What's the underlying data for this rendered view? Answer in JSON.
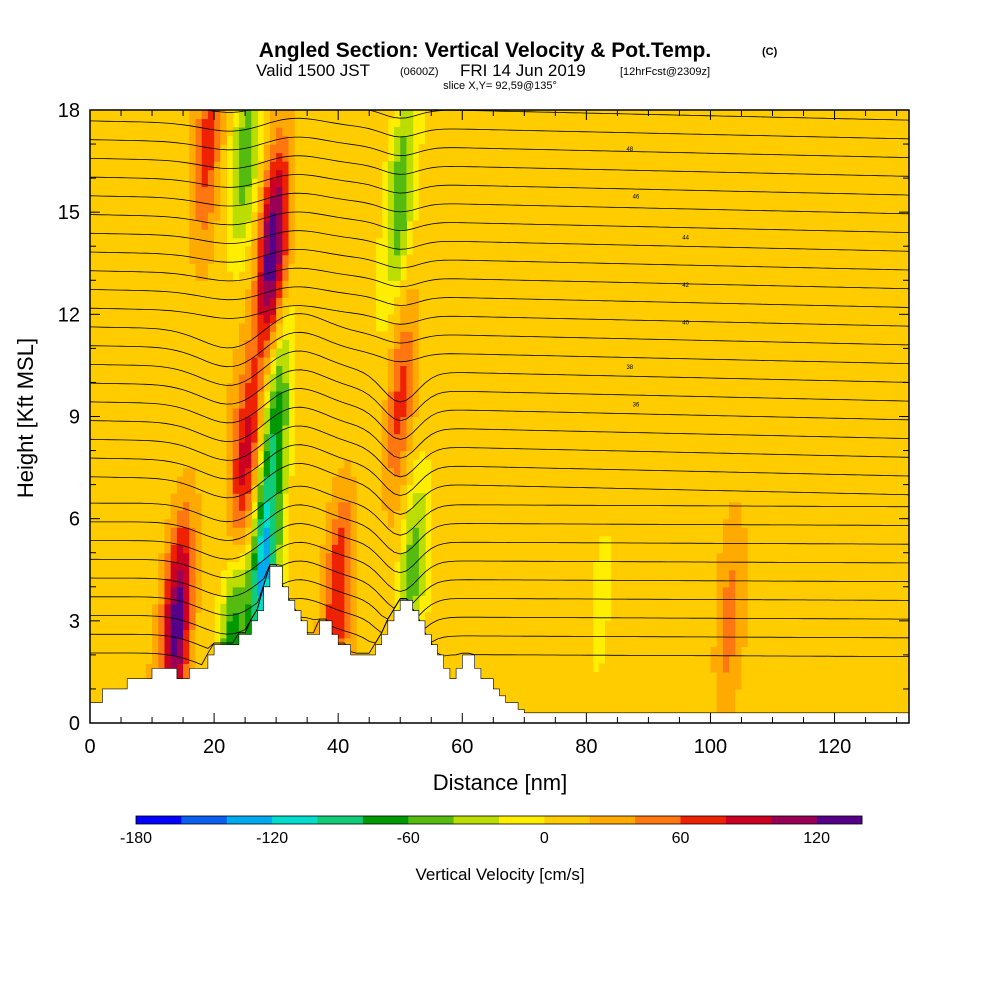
{
  "chart_data": {
    "type": "heatmap",
    "title": "Angled Section: Vertical Velocity & Pot.Temp.",
    "title_suffix": "(C)",
    "subtitle_parts": [
      "Valid 1500 JST",
      "(0600Z)",
      "FRI 14 Jun 2019",
      "[12hrFcst@2309z]"
    ],
    "slice_text": "slice X,Y= 92,59@135°",
    "xlabel": "Distance [nm]",
    "ylabel": "Height [Kft MSL]",
    "xlim": [
      0,
      132
    ],
    "ylim": [
      0,
      18
    ],
    "xticks": [
      "0",
      "20",
      "40",
      "60",
      "80",
      "100",
      "120"
    ],
    "xtick_values": [
      0,
      20,
      40,
      60,
      80,
      100,
      120
    ],
    "yticks": [
      "0",
      "3",
      "6",
      "9",
      "12",
      "15",
      "18"
    ],
    "ytick_values": [
      0,
      3,
      6,
      9,
      12,
      15,
      18
    ],
    "colorbar": {
      "title": "Vertical Velocity [cm/s]",
      "min": -180,
      "max": 140,
      "step": 20,
      "tick_labels": [
        "-180",
        "-120",
        "-60",
        "0",
        "60",
        "120"
      ],
      "tick_values": [
        -180,
        -120,
        -60,
        0,
        60,
        120
      ],
      "colors": [
        "#0000ff",
        "#0a5ef0",
        "#00aaee",
        "#00ddcc",
        "#11cc77",
        "#009900",
        "#55bb11",
        "#bbdd00",
        "#ffee00",
        "#ffcc00",
        "#ffaa00",
        "#ff7711",
        "#ee2200",
        "#cc0022",
        "#990055",
        "#550088"
      ]
    },
    "terrain_profile": {
      "x": [
        0,
        1,
        2,
        5,
        6,
        9,
        10,
        13,
        14,
        15,
        16,
        18,
        19,
        20,
        23,
        24,
        25,
        26,
        27,
        28,
        29,
        30,
        31,
        32,
        33,
        34,
        35,
        36,
        37,
        38,
        39,
        40,
        41,
        42,
        43,
        44,
        45,
        46,
        47,
        48,
        49,
        50,
        51,
        52,
        53,
        54,
        55,
        56,
        57,
        58,
        59,
        60,
        61,
        62,
        63,
        64,
        65,
        66,
        67,
        68,
        69,
        70,
        71,
        72,
        132
      ],
      "height_kft": [
        0.6,
        0.6,
        1.0,
        1.0,
        1.3,
        1.3,
        1.6,
        1.6,
        1.3,
        1.3,
        1.6,
        1.6,
        2.0,
        2.3,
        2.3,
        2.6,
        2.6,
        3.0,
        3.3,
        4.0,
        4.6,
        4.6,
        4.0,
        3.6,
        3.3,
        3.0,
        2.6,
        2.6,
        3.0,
        3.0,
        2.6,
        2.3,
        2.3,
        2.0,
        2.0,
        2.0,
        2.0,
        2.3,
        2.6,
        3.0,
        3.3,
        3.6,
        3.6,
        3.3,
        3.0,
        2.6,
        2.3,
        2.0,
        1.6,
        1.3,
        1.6,
        2.0,
        2.0,
        1.6,
        1.3,
        1.3,
        1.0,
        0.8,
        0.6,
        0.6,
        0.4,
        0.3,
        0.3,
        0.3,
        0.3
      ]
    },
    "updraft_cores": [
      {
        "x": 14,
        "z": 3.0,
        "w": 120
      },
      {
        "x": 25,
        "z": 7.5,
        "w": 80
      },
      {
        "x": 29.5,
        "z": 14.0,
        "w": 130
      },
      {
        "x": 40,
        "z": 4.0,
        "w": 70
      },
      {
        "x": 50,
        "z": 9.5,
        "w": 60
      },
      {
        "x": 19,
        "z": 17.0,
        "w": 60
      },
      {
        "x": 103,
        "z": 3.0,
        "w": 40
      }
    ],
    "downdraft_cores": [
      {
        "x": 28,
        "z": 4.5,
        "w": -130
      },
      {
        "x": 23,
        "z": 2.5,
        "w": -80
      },
      {
        "x": 30,
        "z": 9.0,
        "w": -80
      },
      {
        "x": 25,
        "z": 16.5,
        "w": -60
      },
      {
        "x": 50,
        "z": 15.5,
        "w": -70
      },
      {
        "x": 52,
        "z": 4.5,
        "w": -60
      },
      {
        "x": 82,
        "z": 3.0,
        "w": -20
      }
    ],
    "contour_labels": [
      "36",
      "38",
      "40",
      "42",
      "44",
      "46",
      "48"
    ]
  }
}
